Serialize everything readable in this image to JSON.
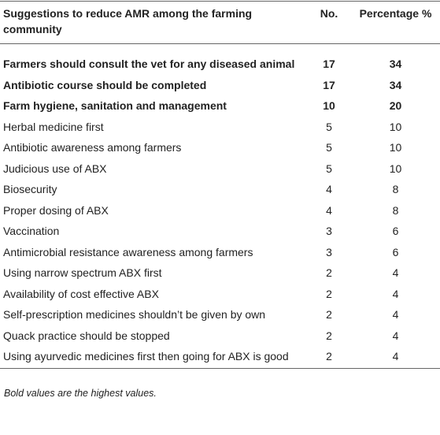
{
  "table": {
    "header": [
      "Suggestions to reduce AMR among the farming community",
      "No.",
      "Percentage %"
    ],
    "rows": [
      {
        "cells": [
          "Farmers should consult the vet for any diseased animal",
          17,
          34
        ],
        "bold": true
      },
      {
        "cells": [
          "Antibiotic course should be completed",
          17,
          34
        ],
        "bold": true
      },
      {
        "cells": [
          "Farm hygiene, sanitation and management",
          10,
          20
        ],
        "bold": true
      },
      {
        "cells": [
          "Herbal medicine first",
          5,
          10
        ],
        "bold": false
      },
      {
        "cells": [
          "Antibiotic awareness among farmers",
          5,
          10
        ],
        "bold": false
      },
      {
        "cells": [
          "Judicious use of ABX",
          5,
          10
        ],
        "bold": false
      },
      {
        "cells": [
          "Biosecurity",
          4,
          8
        ],
        "bold": false
      },
      {
        "cells": [
          "Proper dosing of ABX",
          4,
          8
        ],
        "bold": false
      },
      {
        "cells": [
          "Vaccination",
          3,
          6
        ],
        "bold": false
      },
      {
        "cells": [
          "Antimicrobial resistance awareness among farmers",
          3,
          6
        ],
        "bold": false
      },
      {
        "cells": [
          "Using narrow spectrum ABX first",
          2,
          4
        ],
        "bold": false
      },
      {
        "cells": [
          "Availability of cost effective ABX",
          2,
          4
        ],
        "bold": false
      },
      {
        "cells": [
          "Self-prescription medicines shouldn’t be given by own",
          2,
          4
        ],
        "bold": false
      },
      {
        "cells": [
          "Quack practice should be stopped",
          2,
          4
        ],
        "bold": false
      },
      {
        "cells": [
          "Using ayurvedic medicines first then going for ABX is good",
          2,
          4
        ],
        "bold": false
      }
    ],
    "footnote": "Bold values are the highest values."
  }
}
